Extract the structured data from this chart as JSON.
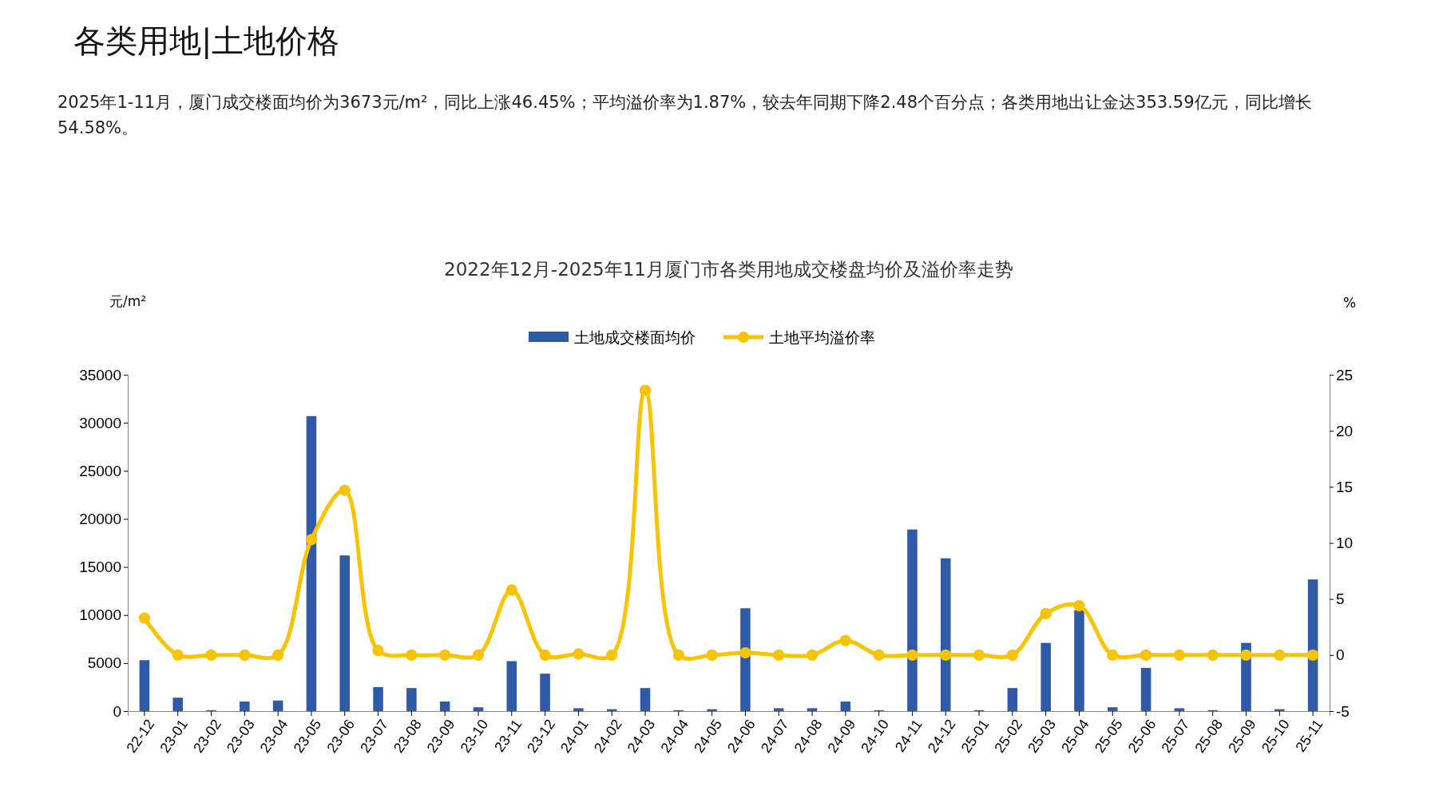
{
  "chart_data": {
    "type": "bar",
    "title": "各类用地|土地价格",
    "subtitle": "2025年1-11月，厦门成交楼面均价为3673元/m²，同比上涨46.45%；平均溢价率为1.87%，较去年同期下降2.48个百分点；各类用地出让金达353.59亿元，同比增长54.58%。",
    "annotations": [
      "2022年12月-2025年11月厦门市各类用地成交楼盘均价及溢价率走势"
    ],
    "ylabel": "元/m²",
    "y2label": "%",
    "categories": [
      "22-12",
      "23-01",
      "23-02",
      "23-03",
      "23-04",
      "23-05",
      "23-06",
      "23-07",
      "23-08",
      "23-09",
      "23-10",
      "23-11",
      "23-12",
      "24-01",
      "24-02",
      "24-03",
      "24-04",
      "24-05",
      "24-06",
      "24-07",
      "24-08",
      "24-09",
      "24-10",
      "24-11",
      "24-12",
      "25-01",
      "25-02",
      "25-03",
      "25-04",
      "25-05",
      "25-06",
      "25-07",
      "25-08",
      "25-09",
      "25-10",
      "25-11"
    ],
    "series": [
      {
        "name": "土地成交楼面均价",
        "color": "#2e5aa8",
        "values": [
          5300,
          1400,
          100,
          1000,
          1100,
          30700,
          16200,
          2500,
          2400,
          1000,
          400,
          5200,
          3900,
          300,
          200,
          2400,
          100,
          200,
          10700,
          300,
          300,
          1000,
          100,
          18900,
          15900,
          100,
          2400,
          7100,
          10500,
          400,
          4500,
          300,
          100,
          7100,
          200,
          13700
        ]
      },
      {
        "name": "土地平均溢价率",
        "type": "line",
        "axis": "y2",
        "color": "#f8c300",
        "values": [
          3.3,
          0,
          0,
          0,
          0,
          10.3,
          14.7,
          0.4,
          0,
          0,
          0,
          5.8,
          0,
          0.1,
          0,
          23.6,
          0,
          0,
          0.2,
          0,
          0,
          1.3,
          0,
          0,
          0,
          0,
          0,
          3.7,
          4.4,
          0,
          0,
          0,
          0,
          0,
          0,
          0
        ]
      }
    ],
    "ylim": [
      0,
      35000
    ],
    "yticks": [
      0,
      5000,
      10000,
      15000,
      20000,
      25000,
      30000,
      35000
    ],
    "y2lim": [
      -5,
      25
    ],
    "y2ticks": [
      -5,
      0,
      5,
      10,
      15,
      20,
      25
    ],
    "legend": "top",
    "grid": false,
    "marker": "circle",
    "line_style": "solid"
  }
}
